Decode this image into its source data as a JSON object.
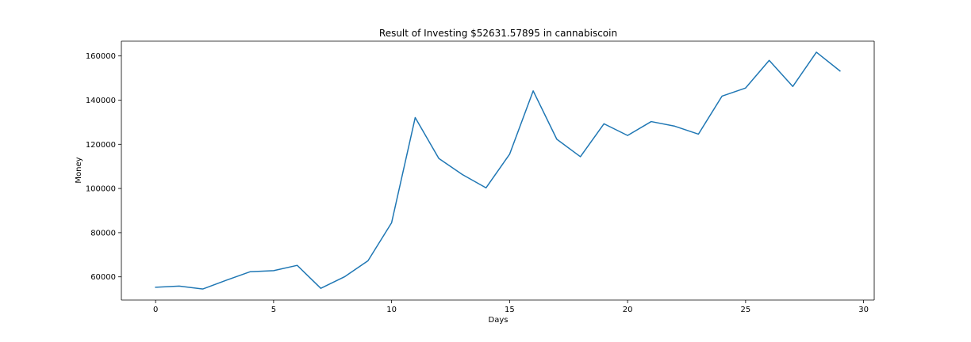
{
  "chart_data": {
    "type": "line",
    "title": "Result of Investing $52631.57895 in cannabiscoin",
    "xlabel": "Days",
    "ylabel": "Money",
    "xlim": [
      -1.45,
      30.45
    ],
    "ylim": [
      49500,
      166700
    ],
    "xticks": [
      0,
      5,
      10,
      15,
      20,
      25,
      30
    ],
    "yticks": [
      60000,
      80000,
      100000,
      120000,
      140000,
      160000
    ],
    "grid": false,
    "legend": "none",
    "line_color": "#1f77b4",
    "series": [
      {
        "x": [
          0,
          1,
          2,
          3,
          4,
          5,
          6,
          7,
          8,
          9,
          10,
          11,
          12,
          13,
          14,
          15,
          16,
          17,
          18,
          19,
          20,
          21,
          22,
          23,
          24,
          25,
          26,
          27,
          28,
          29
        ],
        "values": [
          55300,
          55800,
          54500,
          58500,
          62300,
          62800,
          65200,
          54800,
          60000,
          67300,
          84500,
          132100,
          113600,
          106300,
          100300,
          115500,
          144200,
          122300,
          114400,
          129300,
          124000,
          130300,
          128200,
          124600,
          141800,
          145500,
          158000,
          146200,
          161700,
          153200
        ]
      }
    ]
  }
}
